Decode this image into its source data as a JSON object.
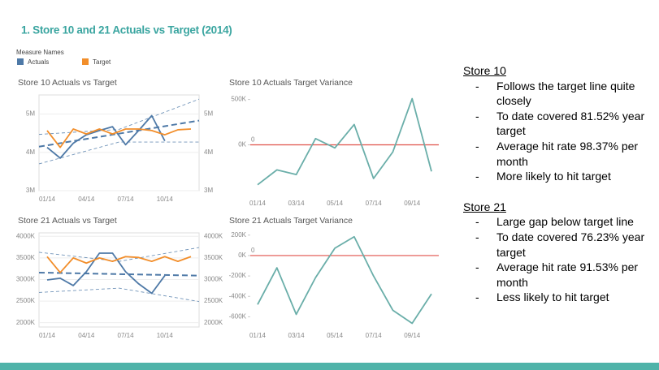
{
  "title": "1. Store 10 and 21 Actuals vs Target (2014)",
  "legend": {
    "title": "Measure Names",
    "items": [
      {
        "name": "Actuals",
        "color": "#4e79a7"
      },
      {
        "name": "Target",
        "color": "#f28e2b"
      }
    ]
  },
  "chart_data": [
    {
      "type": "line",
      "title": "Store 10 Actuals vs Target",
      "categories": [
        "01/14",
        null,
        null,
        "04/14",
        null,
        null,
        "07/14",
        null,
        null,
        "10/14",
        null,
        null
      ],
      "series": [
        {
          "name": "Actuals",
          "color": "#4e79a7",
          "values": [
            4130000,
            3850000,
            4240000,
            4460000,
            4570000,
            4670000,
            4200000,
            4570000,
            4960000,
            4300000,
            null,
            null
          ]
        },
        {
          "name": "Target",
          "color": "#f28e2b",
          "values": [
            4570000,
            4130000,
            4610000,
            4480000,
            4610000,
            4480000,
            4610000,
            4610000,
            4570000,
            4460000,
            4590000,
            4610000
          ]
        }
      ],
      "trends": [
        {
          "color": "#4e79a7",
          "weight": "heavy",
          "values": [
            4150000,
            4830000
          ]
        },
        {
          "color": "#4e79a7",
          "weight": "light",
          "values": [
            4470000,
            4600000,
            5390000
          ]
        },
        {
          "color": "#4e79a7",
          "weight": "light",
          "values": [
            3700000,
            4270000,
            4270000
          ]
        }
      ],
      "ylim": [
        3000000,
        5500000
      ],
      "yticks": [
        {
          "value": 3000000,
          "label": "3M"
        },
        {
          "value": 4000000,
          "label": "4M"
        },
        {
          "value": 5000000,
          "label": "5M"
        }
      ],
      "grid": true,
      "frame": true,
      "mirror_yticks": true
    },
    {
      "type": "line",
      "title": "Store 10 Actuals Target Variance",
      "categories": [
        "01/14",
        null,
        "03/14",
        null,
        "05/14",
        null,
        "07/14",
        null,
        "09/14",
        null
      ],
      "series": [
        {
          "color": "#6aaea9",
          "values": [
            -440000,
            -276000,
            -328000,
            69000,
            -34000,
            224000,
            -371000,
            -78000,
            509000,
            -293000
          ]
        }
      ],
      "reference_line": {
        "value": 0,
        "label": "0",
        "color": "#e0524a"
      },
      "ylim": [
        -550000,
        550000
      ],
      "yticks": [
        {
          "value": 0,
          "label": "0K"
        },
        {
          "value": 500000,
          "label": "500K"
        }
      ],
      "grid": false,
      "frame": false,
      "mirror_yticks": false
    },
    {
      "type": "line",
      "title": "Store 21 Actuals vs Target",
      "categories": [
        "01/14",
        null,
        null,
        "04/14",
        null,
        null,
        "07/14",
        null,
        null,
        "10/14",
        null,
        null
      ],
      "series": [
        {
          "name": "Actuals",
          "color": "#4e79a7",
          "values": [
            2990000,
            3030000,
            2860000,
            3180000,
            3610000,
            3610000,
            3180000,
            2900000,
            2680000,
            3090000,
            null,
            null
          ]
        },
        {
          "name": "Target",
          "color": "#f28e2b",
          "values": [
            3530000,
            3160000,
            3500000,
            3380000,
            3500000,
            3420000,
            3530000,
            3510000,
            3420000,
            3530000,
            3420000,
            3530000
          ]
        }
      ],
      "trends": [
        {
          "color": "#4e79a7",
          "weight": "heavy",
          "values": [
            3160000,
            3090000
          ]
        },
        {
          "color": "#4e79a7",
          "weight": "light",
          "values": [
            3630000,
            3420000,
            3740000
          ]
        },
        {
          "color": "#4e79a7",
          "weight": "light",
          "values": [
            2700000,
            2800000,
            2490000
          ]
        }
      ],
      "ylim": [
        1900000,
        4080000
      ],
      "yticks": [
        {
          "value": 2000000,
          "label": "2000K"
        },
        {
          "value": 2500000,
          "label": "2500K"
        },
        {
          "value": 3000000,
          "label": "3000K"
        },
        {
          "value": 3500000,
          "label": "3500K"
        },
        {
          "value": 4000000,
          "label": "4000K"
        }
      ],
      "grid": true,
      "frame": true,
      "mirror_yticks": true
    },
    {
      "type": "line",
      "title": "Store 21 Actuals Target Variance",
      "categories": [
        "01/14",
        null,
        "03/14",
        null,
        "05/14",
        null,
        "07/14",
        null,
        "09/14",
        null
      ],
      "series": [
        {
          "color": "#6aaea9",
          "values": [
            -480000,
            -120000,
            -576000,
            -216000,
            72000,
            184000,
            -200000,
            -536000,
            -664000,
            -376000
          ]
        }
      ],
      "reference_line": {
        "value": 0,
        "label": "0",
        "color": "#e0524a"
      },
      "ylim": [
        -700000,
        230000
      ],
      "yticks": [
        {
          "value": -600000,
          "label": "-600K"
        },
        {
          "value": -400000,
          "label": "-400K"
        },
        {
          "value": -200000,
          "label": "-200K"
        },
        {
          "value": 0,
          "label": "0K"
        },
        {
          "value": 200000,
          "label": "200K"
        }
      ],
      "grid": false,
      "frame": false,
      "mirror_yticks": false
    }
  ],
  "notes": [
    {
      "heading": "Store 10",
      "bullets": [
        "Follows the target line quite closely",
        "To date covered 81.52% year target",
        "Average hit rate 98.37% per month",
        "More likely to hit target"
      ]
    },
    {
      "heading": "Store 21",
      "bullets": [
        "Large gap below target line",
        "To date covered 76.23% year target",
        "Average hit rate 91.53% per month",
        "Less likely to hit target"
      ]
    }
  ]
}
